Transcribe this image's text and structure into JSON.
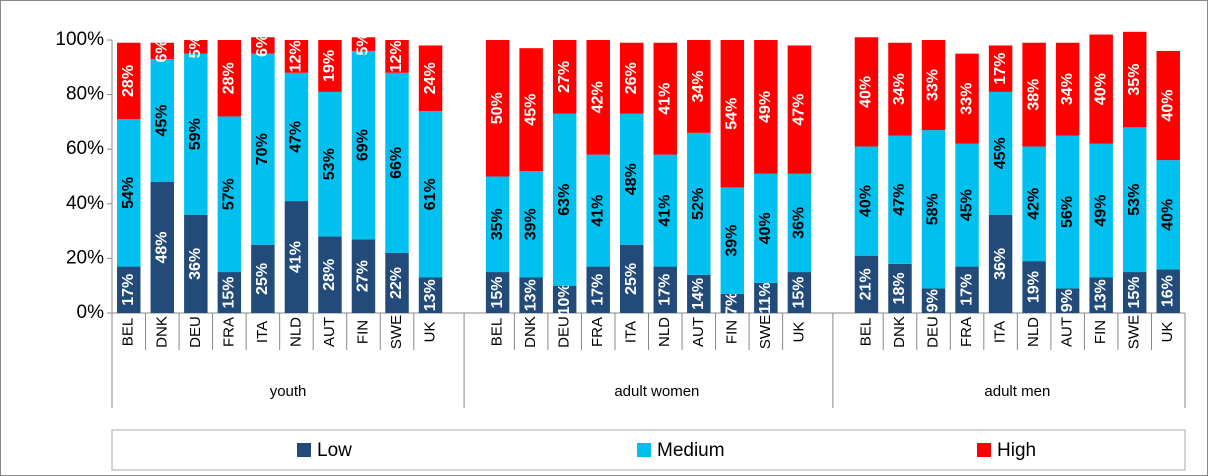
{
  "chart_data": {
    "type": "stacked_bar",
    "groups": [
      {
        "label": "youth",
        "categories": [
          "BEL",
          "DNK",
          "DEU",
          "FRA",
          "ITA",
          "NLD",
          "AUT",
          "FIN",
          "SWE",
          "UK"
        ]
      },
      {
        "label": "adult women",
        "categories": [
          "BEL",
          "DNK",
          "DEU",
          "FRA",
          "ITA",
          "NLD",
          "AUT",
          "FIN",
          "SWE",
          "UK"
        ]
      },
      {
        "label": "adult men",
        "categories": [
          "BEL",
          "DNK",
          "DEU",
          "FRA",
          "ITA",
          "NLD",
          "AUT",
          "FIN",
          "SWE",
          "UK"
        ]
      }
    ],
    "series": [
      {
        "name": "Low",
        "color": "#234b7a",
        "label_color": "#ffffff",
        "values": [
          17,
          48,
          36,
          15,
          25,
          41,
          28,
          27,
          22,
          13,
          15,
          13,
          10,
          17,
          25,
          17,
          14,
          7,
          11,
          15,
          21,
          18,
          9,
          17,
          36,
          19,
          9,
          13,
          15,
          16
        ],
        "value_labels": [
          "17%",
          "48%",
          "36%",
          "15%",
          "25%",
          "41%",
          "28%",
          "27%",
          "22%",
          "13%",
          "15%",
          "13%",
          "10%",
          "17%",
          "25%",
          "17%",
          "14%",
          "7%",
          "11%",
          "15%",
          "21%",
          "18%",
          "9%",
          "17%",
          "36%",
          "19%",
          "9%",
          "13%",
          "15%",
          "16%"
        ]
      },
      {
        "name": "Medium",
        "color": "#00c0f0",
        "label_color": "#000000",
        "values": [
          54,
          45,
          59,
          57,
          70,
          47,
          53,
          69,
          66,
          61,
          35,
          39,
          63,
          41,
          48,
          41,
          52,
          39,
          40,
          36,
          40,
          47,
          58,
          45,
          45,
          42,
          56,
          49,
          53,
          40
        ],
        "value_labels": [
          "54%",
          "45%",
          "59%",
          "57%",
          "70%",
          "47%",
          "53%",
          "69%",
          "66%",
          "61%",
          "35%",
          "39%",
          "63%",
          "41%",
          "48%",
          "41%",
          "52%",
          "39%",
          "40%",
          "36%",
          "40%",
          "47%",
          "58%",
          "45%",
          "45%",
          "42%",
          "56%",
          "49%",
          "53%",
          "40%"
        ]
      },
      {
        "name": "High",
        "color": "#ff0000",
        "label_color": "#ffffff",
        "values": [
          28,
          6,
          5,
          28,
          6,
          12,
          19,
          5,
          12,
          24,
          50,
          45,
          27,
          42,
          26,
          41,
          34,
          54,
          49,
          47,
          40,
          34,
          33,
          33,
          17,
          38,
          34,
          40,
          35,
          40
        ],
        "value_labels": [
          "28%",
          "6%",
          "5%",
          "28%",
          "6%",
          "12%",
          "19%",
          "5%",
          "12%",
          "24%",
          "50%",
          "45%",
          "27%",
          "42%",
          "26%",
          "41%",
          "34%",
          "54%",
          "49%",
          "47%",
          "40%",
          "34%",
          "33%",
          "33%",
          "17%",
          "38%",
          "34%",
          "40%",
          "35%",
          "40%"
        ]
      }
    ],
    "ylim": [
      0,
      100
    ],
    "yticks": [
      {
        "value": 0,
        "label": "0%"
      },
      {
        "value": 20,
        "label": "20%"
      },
      {
        "value": 40,
        "label": "40%"
      },
      {
        "value": 60,
        "label": "60%"
      },
      {
        "value": 80,
        "label": "80%"
      },
      {
        "value": 100,
        "label": "100%"
      }
    ],
    "legend": "bottom"
  }
}
